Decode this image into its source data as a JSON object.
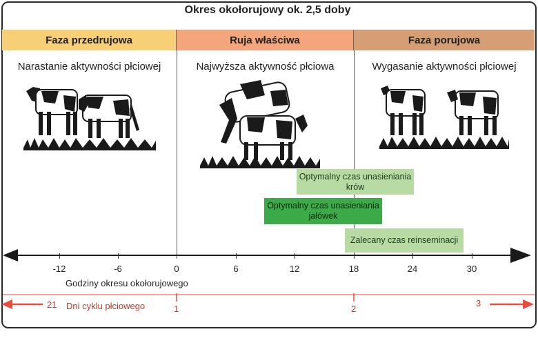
{
  "title": "Okres okołorujowy ok. 2,5 doby",
  "phases": [
    {
      "name": "Faza przedrujowa",
      "description": "Narastanie aktywności płciowej",
      "color": "#f7cf77"
    },
    {
      "name": "Ruja właściwa",
      "description": "Najwyższa aktywność płciowa",
      "color": "#f4a57c"
    },
    {
      "name": "Faza porujowa",
      "description": "Wygasanie aktywności płciowej",
      "color": "#d59e74"
    }
  ],
  "boxes": [
    {
      "label": "Optymalny czas unasieniania krów",
      "color": "#b8dba3"
    },
    {
      "label": "Optymalny czas unasieniania jałówek",
      "color": "#3daa4a"
    },
    {
      "label": "Zalecany czas reinseminacji",
      "color": "#b8dba3"
    }
  ],
  "hours_axis": {
    "label": "Godziny okresu okołorujowego",
    "ticks": [
      "-12",
      "-6",
      "0",
      "6",
      "12",
      "18",
      "24",
      "30"
    ]
  },
  "cycle_axis": {
    "label": "Dni cyklu płciowego",
    "left_number": "21",
    "markers": [
      "1",
      "2"
    ],
    "right_number": "3",
    "color": "#e74c3c"
  },
  "icons": [
    "grazing-cows-icon",
    "mounting-cows-icon",
    "standing-cows-icon"
  ]
}
